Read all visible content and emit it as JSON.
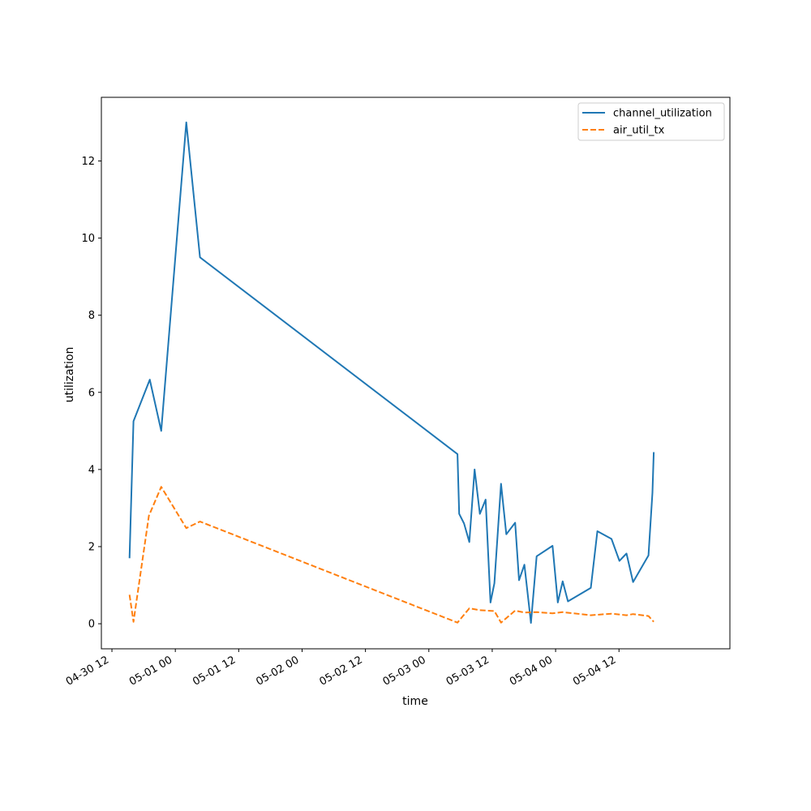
{
  "chart_data": {
    "type": "line",
    "title": "",
    "xlabel": "time",
    "ylabel": "utilization",
    "x_type": "datetime",
    "xlim": [
      "2026-04-30T10:00",
      "2026-05-05T09:00"
    ],
    "ylim": [
      -0.65,
      13.65
    ],
    "x_ticks": [
      {
        "t": "2026-04-30T12:00",
        "label": "04-30 12"
      },
      {
        "t": "2026-05-01T00:00",
        "label": "05-01 00"
      },
      {
        "t": "2026-05-01T12:00",
        "label": "05-01 12"
      },
      {
        "t": "2026-05-02T00:00",
        "label": "05-02 00"
      },
      {
        "t": "2026-05-02T12:00",
        "label": "05-02 12"
      },
      {
        "t": "2026-05-03T00:00",
        "label": "05-03 00"
      },
      {
        "t": "2026-05-03T12:00",
        "label": "05-03 12"
      },
      {
        "t": "2026-05-04T00:00",
        "label": "05-04 00"
      },
      {
        "t": "2026-05-04T12:00",
        "label": "05-04 12"
      }
    ],
    "y_ticks": [
      0,
      2,
      4,
      6,
      8,
      10,
      12
    ],
    "grid": false,
    "legend_position": "top-right",
    "series": [
      {
        "name": "channel_utilization",
        "color": "#1f77b4",
        "style": "solid",
        "points": [
          [
            "2026-04-30T15:20",
            1.7
          ],
          [
            "2026-04-30T16:05",
            5.25
          ],
          [
            "2026-04-30T19:10",
            6.33
          ],
          [
            "2026-04-30T21:20",
            5.0
          ],
          [
            "2026-05-01T02:05",
            13.0
          ],
          [
            "2026-05-01T04:40",
            9.5
          ],
          [
            "2026-05-03T05:25",
            4.4
          ],
          [
            "2026-05-03T05:45",
            2.85
          ],
          [
            "2026-05-03T06:40",
            2.6
          ],
          [
            "2026-05-03T07:40",
            2.12
          ],
          [
            "2026-05-03T08:40",
            4.0
          ],
          [
            "2026-05-03T09:40",
            2.85
          ],
          [
            "2026-05-03T10:45",
            3.22
          ],
          [
            "2026-05-03T11:40",
            0.55
          ],
          [
            "2026-05-03T12:25",
            1.05
          ],
          [
            "2026-05-03T13:40",
            3.63
          ],
          [
            "2026-05-03T14:40",
            2.32
          ],
          [
            "2026-05-03T16:20",
            2.62
          ],
          [
            "2026-05-03T17:05",
            1.13
          ],
          [
            "2026-05-03T18:05",
            1.53
          ],
          [
            "2026-05-03T19:20",
            0.02
          ],
          [
            "2026-05-03T20:25",
            1.75
          ],
          [
            "2026-05-03T23:25",
            2.02
          ],
          [
            "2026-05-04T00:25",
            0.55
          ],
          [
            "2026-05-04T01:20",
            1.1
          ],
          [
            "2026-05-04T02:20",
            0.58
          ],
          [
            "2026-05-04T06:40",
            0.93
          ],
          [
            "2026-05-04T07:55",
            2.4
          ],
          [
            "2026-05-04T10:35",
            2.2
          ],
          [
            "2026-05-04T12:05",
            1.63
          ],
          [
            "2026-05-04T13:25",
            1.82
          ],
          [
            "2026-05-04T14:40",
            1.08
          ],
          [
            "2026-05-04T17:35",
            1.77
          ],
          [
            "2026-05-04T18:20",
            3.4
          ],
          [
            "2026-05-04T18:35",
            4.45
          ]
        ]
      },
      {
        "name": "air_util_tx",
        "color": "#ff7f0e",
        "style": "dashed",
        "points": [
          [
            "2026-04-30T15:20",
            0.75
          ],
          [
            "2026-04-30T16:05",
            0.05
          ],
          [
            "2026-04-30T19:00",
            2.8
          ],
          [
            "2026-04-30T21:20",
            3.55
          ],
          [
            "2026-05-01T02:05",
            2.48
          ],
          [
            "2026-05-01T04:40",
            2.65
          ],
          [
            "2026-05-03T05:25",
            0.03
          ],
          [
            "2026-05-03T07:40",
            0.4
          ],
          [
            "2026-05-03T09:40",
            0.35
          ],
          [
            "2026-05-03T12:25",
            0.33
          ],
          [
            "2026-05-03T13:40",
            0.03
          ],
          [
            "2026-05-03T16:20",
            0.34
          ],
          [
            "2026-05-03T18:05",
            0.29
          ],
          [
            "2026-05-03T20:25",
            0.3
          ],
          [
            "2026-05-03T23:25",
            0.27
          ],
          [
            "2026-05-04T01:20",
            0.3
          ],
          [
            "2026-05-04T06:40",
            0.22
          ],
          [
            "2026-05-04T10:35",
            0.26
          ],
          [
            "2026-05-04T13:25",
            0.22
          ],
          [
            "2026-05-04T14:40",
            0.25
          ],
          [
            "2026-05-04T17:35",
            0.2
          ],
          [
            "2026-05-04T18:35",
            0.05
          ]
        ]
      }
    ]
  }
}
